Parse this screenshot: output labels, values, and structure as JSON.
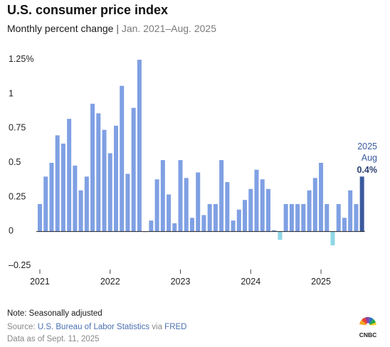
{
  "header": {
    "title": "U.S. consumer price index",
    "subtitle_main": "Monthly percent change",
    "subtitle_sep": "|",
    "subtitle_range": "Jan. 2021–Aug. 2025"
  },
  "chart_data": {
    "type": "bar",
    "title": "U.S. consumer price index",
    "subtitle": "Monthly percent change | Jan. 2021–Aug. 2025",
    "xlabel": "",
    "ylabel": "",
    "ylim": [
      -0.25,
      1.25
    ],
    "yticks": [
      {
        "value": 1.25,
        "label": "1.25%"
      },
      {
        "value": 1,
        "label": "1"
      },
      {
        "value": 0.75,
        "label": "0.75"
      },
      {
        "value": 0.5,
        "label": "0.5"
      },
      {
        "value": 0.25,
        "label": "0.25"
      },
      {
        "value": 0,
        "label": "0"
      },
      {
        "value": -0.25,
        "label": "–0.25"
      }
    ],
    "xticks": [
      "2021",
      "2022",
      "2023",
      "2024",
      "2025"
    ],
    "grid": false,
    "colors": {
      "positive": "#7fa0e3",
      "negative": "#8fd6e6",
      "highlight": "#3b5a9e"
    },
    "categories": [
      "2021-01",
      "2021-02",
      "2021-03",
      "2021-04",
      "2021-05",
      "2021-06",
      "2021-07",
      "2021-08",
      "2021-09",
      "2021-10",
      "2021-11",
      "2021-12",
      "2022-01",
      "2022-02",
      "2022-03",
      "2022-04",
      "2022-05",
      "2022-06",
      "2022-07",
      "2022-08",
      "2022-09",
      "2022-10",
      "2022-11",
      "2022-12",
      "2023-01",
      "2023-02",
      "2023-03",
      "2023-04",
      "2023-05",
      "2023-06",
      "2023-07",
      "2023-08",
      "2023-09",
      "2023-10",
      "2023-11",
      "2023-12",
      "2024-01",
      "2024-02",
      "2024-03",
      "2024-04",
      "2024-05",
      "2024-06",
      "2024-07",
      "2024-08",
      "2024-09",
      "2024-10",
      "2024-11",
      "2024-12",
      "2025-01",
      "2025-02",
      "2025-03",
      "2025-04",
      "2025-05",
      "2025-06",
      "2025-07",
      "2025-08"
    ],
    "values": [
      0.2,
      0.4,
      0.5,
      0.7,
      0.64,
      0.82,
      0.48,
      0.3,
      0.4,
      0.93,
      0.86,
      0.74,
      0.57,
      0.77,
      1.06,
      0.42,
      0.9,
      1.25,
      0.0,
      0.08,
      0.38,
      0.52,
      0.27,
      0.06,
      0.52,
      0.39,
      0.1,
      0.43,
      0.12,
      0.2,
      0.2,
      0.52,
      0.36,
      0.08,
      0.16,
      0.23,
      0.31,
      0.45,
      0.38,
      0.31,
      0.01,
      -0.06,
      0.2,
      0.2,
      0.2,
      0.2,
      0.3,
      0.39,
      0.5,
      0.2,
      -0.1,
      0.2,
      0.1,
      0.3,
      0.2,
      0.4
    ],
    "annotation": {
      "year": "2025",
      "month": "Aug",
      "value": "0.4%"
    }
  },
  "footer": {
    "note": "Note: Seasonally adjusted",
    "source_prefix": "Source: ",
    "source_bls": "U.S. Bureau of Labor Statistics",
    "source_via": " via ",
    "source_fred": "FRED",
    "as_of": "Data as of Sept. 11, 2025",
    "logo_text": "CNBC"
  }
}
